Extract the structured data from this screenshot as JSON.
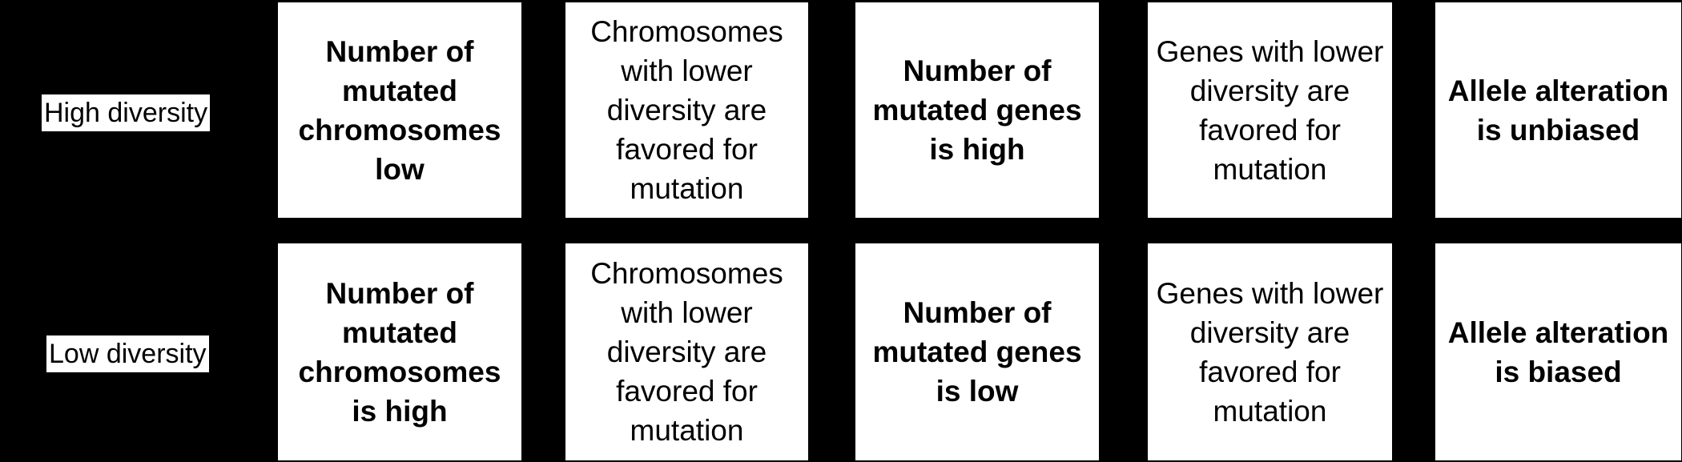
{
  "rows": [
    {
      "label": "High diversity",
      "cells": [
        "Number of mutated chromosomes low",
        "Chromosomes with lower diversity are favored for mutation",
        "Number of mutated genes is high",
        "Genes with lower diversity are favored for mutation",
        "Allele alteration is unbiased"
      ]
    },
    {
      "label": "Low diversity",
      "cells": [
        "Number of mutated chromosomes is high",
        "Chromosomes with lower diversity are favored for mutation",
        "Number of mutated genes is low",
        "Genes with lower diversity are favored for mutation",
        "Allele alteration is biased"
      ]
    }
  ],
  "colors": {
    "background": "#000000",
    "box": "#ffffff",
    "text": "#000000"
  }
}
